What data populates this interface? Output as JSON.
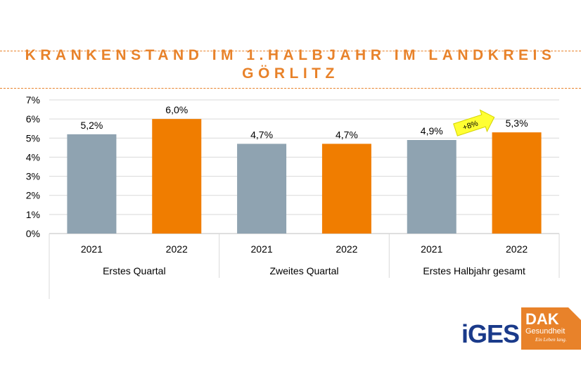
{
  "title_line1": "KRANKENSTAND IM 1.HALBJAHR IM LANDKREIS",
  "title_line2": "GÖRLITZ",
  "colors": {
    "accent": "#e8822a",
    "gray_bar": "#8fa3b1",
    "orange_bar": "#f07d00",
    "grid": "#d9d9d9"
  },
  "chart_data": {
    "type": "bar",
    "ylim": [
      0,
      7
    ],
    "yticks": [
      "0%",
      "1%",
      "2%",
      "3%",
      "4%",
      "5%",
      "6%",
      "7%"
    ],
    "groups": [
      {
        "label": "Erstes Quartal",
        "bars": [
          {
            "year": "2021",
            "value": 5.2,
            "label": "5,2%",
            "color": "#8fa3b1"
          },
          {
            "year": "2022",
            "value": 6.0,
            "label": "6,0%",
            "color": "#f07d00"
          }
        ]
      },
      {
        "label": "Zweites Quartal",
        "bars": [
          {
            "year": "2021",
            "value": 4.7,
            "label": "4,7%",
            "color": "#8fa3b1"
          },
          {
            "year": "2022",
            "value": 4.7,
            "label": "4,7%",
            "color": "#f07d00"
          }
        ]
      },
      {
        "label": "Erstes Halbjahr gesamt",
        "bars": [
          {
            "year": "2021",
            "value": 4.9,
            "label": "4,9%",
            "color": "#8fa3b1"
          },
          {
            "year": "2022",
            "value": 5.3,
            "label": "5,3%",
            "color": "#f07d00"
          }
        ]
      }
    ],
    "annotation": {
      "text": "+8%",
      "color": "#ffff33"
    }
  },
  "logos": {
    "iges": "iGES",
    "dak_name": "DAK",
    "dak_sub": "Gesundheit",
    "dak_tagline": "Ein Leben lang."
  }
}
